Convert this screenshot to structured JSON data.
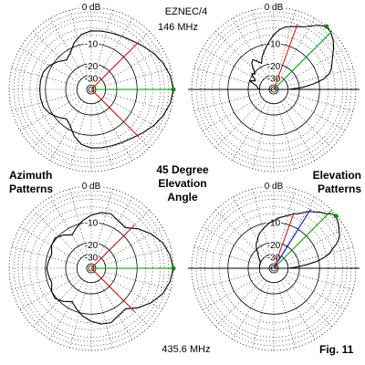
{
  "program": "EZNEC/4",
  "freq_top": "146 MHz",
  "freq_bottom": "435.6 MHz",
  "center_title": [
    "45 Degree",
    "Elevation",
    "Angle"
  ],
  "left_label": [
    "Azimuth",
    "Patterns"
  ],
  "right_label": [
    "Elevation",
    "Patterns"
  ],
  "fig_label": "Fig. 11",
  "ring_labels": [
    "0 dB",
    "-10",
    "-20",
    "-30"
  ],
  "colors": {
    "grid": "#000000",
    "pattern": "#000000",
    "red": "#e00000",
    "green": "#009a00",
    "blue": "#0000ee",
    "marker": "#009a00"
  },
  "chart_data": [
    {
      "type": "polar",
      "name": "Azimuth 146 MHz",
      "rings_db": [
        0,
        -10,
        -20,
        -30
      ],
      "pattern": [
        [
          0,
          0
        ],
        [
          10,
          -0.4
        ],
        [
          20,
          -1.2
        ],
        [
          30,
          -2.2
        ],
        [
          40,
          -3.4
        ],
        [
          50,
          -4.4
        ],
        [
          60,
          -5.0
        ],
        [
          70,
          -5.4
        ],
        [
          80,
          -5.6
        ],
        [
          90,
          -5.8
        ],
        [
          100,
          -6.6
        ],
        [
          110,
          -8.6
        ],
        [
          120,
          -11.5
        ],
        [
          130,
          -13
        ],
        [
          140,
          -11
        ],
        [
          150,
          -9.2
        ],
        [
          160,
          -8.2
        ],
        [
          170,
          -8
        ],
        [
          180,
          -8
        ],
        [
          190,
          -8
        ],
        [
          200,
          -8.2
        ],
        [
          210,
          -9.2
        ],
        [
          220,
          -11
        ],
        [
          230,
          -13
        ],
        [
          240,
          -11.5
        ],
        [
          250,
          -8.6
        ],
        [
          260,
          -6.6
        ],
        [
          270,
          -5.8
        ],
        [
          280,
          -5.6
        ],
        [
          290,
          -5.4
        ],
        [
          300,
          -5.0
        ],
        [
          310,
          -4.4
        ],
        [
          320,
          -3.4
        ],
        [
          330,
          -2.2
        ],
        [
          340,
          -1.2
        ],
        [
          350,
          -0.4
        ]
      ],
      "lines": [
        {
          "color": "green",
          "angle": 0
        },
        {
          "color": "red",
          "angle": 45
        },
        {
          "color": "red",
          "angle": -45
        }
      ]
    },
    {
      "type": "polar",
      "name": "Elevation 146 MHz",
      "rings_db": [
        0,
        -10,
        -20,
        -30
      ],
      "pattern": [
        [
          0,
          -30
        ],
        [
          4,
          -18
        ],
        [
          8,
          -12
        ],
        [
          12,
          -8
        ],
        [
          16,
          -6
        ],
        [
          20,
          -5
        ],
        [
          25,
          -4.2
        ],
        [
          30,
          -3.2
        ],
        [
          35,
          -2
        ],
        [
          40,
          -1
        ],
        [
          45,
          -0.3
        ],
        [
          50,
          0
        ],
        [
          55,
          -0.8
        ],
        [
          60,
          -2
        ],
        [
          65,
          -3
        ],
        [
          70,
          -3.5
        ],
        [
          75,
          -4
        ],
        [
          80,
          -4.5
        ],
        [
          85,
          -5.5
        ],
        [
          90,
          -7
        ],
        [
          95,
          -9
        ],
        [
          100,
          -11
        ],
        [
          105,
          -13
        ],
        [
          110,
          -15
        ],
        [
          115,
          -18
        ],
        [
          120,
          -16
        ],
        [
          125,
          -14
        ],
        [
          130,
          -15
        ],
        [
          135,
          -18
        ],
        [
          140,
          -21
        ],
        [
          145,
          -19
        ],
        [
          150,
          -22
        ],
        [
          155,
          -24
        ],
        [
          160,
          -20
        ],
        [
          165,
          -24
        ],
        [
          170,
          -27
        ],
        [
          175,
          -28
        ],
        [
          180,
          -30
        ]
      ],
      "lines": [
        {
          "color": "green",
          "angle": 45
        },
        {
          "color": "red",
          "angle": 70
        }
      ]
    },
    {
      "type": "polar",
      "name": "Azimuth 435.6 MHz",
      "rings_db": [
        0,
        -10,
        -20,
        -30
      ],
      "pattern": [
        [
          0,
          0
        ],
        [
          10,
          -0.5
        ],
        [
          20,
          -1.4
        ],
        [
          30,
          -3
        ],
        [
          40,
          -5
        ],
        [
          50,
          -7.5
        ],
        [
          60,
          -7
        ],
        [
          70,
          -6
        ],
        [
          80,
          -6.4
        ],
        [
          90,
          -7.5
        ],
        [
          100,
          -9
        ],
        [
          110,
          -11
        ],
        [
          120,
          -13
        ],
        [
          130,
          -11
        ],
        [
          140,
          -9.5
        ],
        [
          150,
          -10
        ],
        [
          160,
          -11.5
        ],
        [
          170,
          -11
        ],
        [
          180,
          -10.5
        ],
        [
          190,
          -11
        ],
        [
          200,
          -11.5
        ],
        [
          210,
          -10
        ],
        [
          220,
          -9.5
        ],
        [
          230,
          -11
        ],
        [
          240,
          -13
        ],
        [
          250,
          -11
        ],
        [
          260,
          -9
        ],
        [
          270,
          -7.5
        ],
        [
          280,
          -6.4
        ],
        [
          290,
          -6
        ],
        [
          300,
          -7
        ],
        [
          310,
          -7.5
        ],
        [
          320,
          -5
        ],
        [
          330,
          -3
        ],
        [
          340,
          -1.4
        ],
        [
          350,
          -0.5
        ]
      ],
      "lines": [
        {
          "color": "green",
          "angle": 0
        },
        {
          "color": "red",
          "angle": 45
        },
        {
          "color": "red",
          "angle": -45
        }
      ]
    },
    {
      "type": "polar",
      "name": "Elevation 435.6 MHz",
      "rings_db": [
        0,
        -10,
        -20,
        -30
      ],
      "pattern": [
        [
          0,
          -30
        ],
        [
          3,
          -22
        ],
        [
          6,
          -16
        ],
        [
          9,
          -11
        ],
        [
          12,
          -8
        ],
        [
          15,
          -6
        ],
        [
          18,
          -5
        ],
        [
          21,
          -3.5
        ],
        [
          24,
          -2.5
        ],
        [
          27,
          -1.8
        ],
        [
          30,
          -1.5
        ],
        [
          33,
          -1
        ],
        [
          36,
          -0.6
        ],
        [
          40,
          -0.2
        ],
        [
          43,
          -0.5
        ],
        [
          46,
          -1.4
        ],
        [
          50,
          -2
        ],
        [
          54,
          -2.8
        ],
        [
          58,
          -3.5
        ],
        [
          62,
          -4.5
        ],
        [
          66,
          -5.5
        ],
        [
          70,
          -6
        ],
        [
          74,
          -6.8
        ],
        [
          78,
          -7.5
        ],
        [
          82,
          -8
        ],
        [
          86,
          -8.5
        ],
        [
          90,
          -9.5
        ],
        [
          95,
          -10
        ],
        [
          100,
          -11
        ],
        [
          105,
          -12
        ],
        [
          110,
          -13
        ],
        [
          115,
          -14
        ],
        [
          120,
          -16
        ],
        [
          125,
          -17
        ],
        [
          130,
          -19
        ],
        [
          135,
          -22
        ],
        [
          140,
          -24
        ],
        [
          145,
          -26
        ],
        [
          150,
          -28
        ],
        [
          160,
          -30
        ],
        [
          170,
          -30
        ],
        [
          180,
          -30
        ]
      ],
      "lines": [
        {
          "color": "green",
          "angle": 45
        },
        {
          "color": "blue",
          "angle": 58
        },
        {
          "color": "red",
          "angle": 70
        }
      ]
    }
  ]
}
